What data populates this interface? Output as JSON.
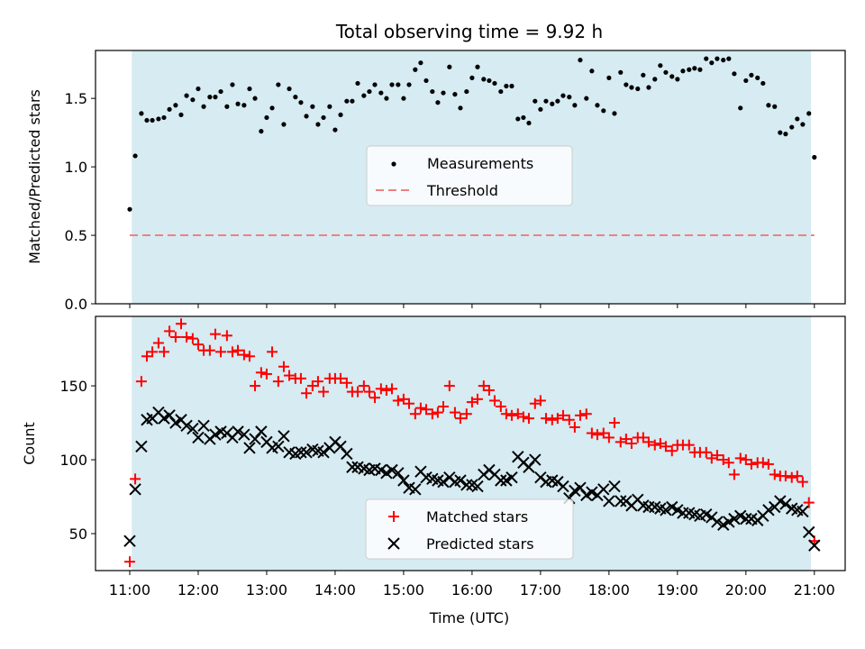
{
  "figure": {
    "title": "Total observing time = 9.92 h",
    "xlabel": "Time (UTC)"
  },
  "chart_data": [
    {
      "type": "scatter",
      "ylabel": "Matched/Predicted stars",
      "xlim": [
        10.5,
        21.45
      ],
      "ylim": [
        0,
        1.85
      ],
      "yticks": [
        0.0,
        0.5,
        1.0,
        1.5
      ],
      "ytick_labels": [
        "0.0",
        "0.5",
        "1.0",
        "1.5"
      ],
      "shaded_range": [
        11.03,
        20.95
      ],
      "shade_color": "#add8e6",
      "legend": {
        "position": "center",
        "entries": [
          "Measurements",
          "Threshold"
        ]
      },
      "threshold": {
        "name": "Threshold",
        "y": 0.5,
        "color": "#f08080",
        "style": "dashed"
      },
      "series": [
        {
          "name": "Measurements",
          "marker": "dot",
          "color": "#000000",
          "x": [
            11.0,
            11.08,
            11.17,
            11.25,
            11.33,
            11.42,
            11.5,
            11.58,
            11.67,
            11.75,
            11.83,
            11.92,
            12.0,
            12.08,
            12.17,
            12.25,
            12.33,
            12.42,
            12.5,
            12.58,
            12.67,
            12.75,
            12.83,
            12.92,
            13.0,
            13.08,
            13.17,
            13.25,
            13.33,
            13.42,
            13.5,
            13.58,
            13.67,
            13.75,
            13.83,
            13.92,
            14.0,
            14.08,
            14.17,
            14.25,
            14.33,
            14.42,
            14.5,
            14.58,
            14.67,
            14.75,
            14.83,
            14.92,
            15.0,
            15.08,
            15.17,
            15.25,
            15.33,
            15.42,
            15.5,
            15.58,
            15.67,
            15.75,
            15.83,
            15.92,
            16.0,
            16.08,
            16.17,
            16.25,
            16.33,
            16.42,
            16.5,
            16.58,
            16.67,
            16.75,
            16.83,
            16.92,
            17.0,
            17.08,
            17.17,
            17.25,
            17.33,
            17.42,
            17.5,
            17.58,
            17.67,
            17.75,
            17.83,
            17.92,
            18.0,
            18.08,
            18.17,
            18.25,
            18.33,
            18.42,
            18.5,
            18.58,
            18.67,
            18.75,
            18.83,
            18.92,
            19.0,
            19.08,
            19.17,
            19.25,
            19.33,
            19.42,
            19.5,
            19.58,
            19.67,
            19.75,
            19.83,
            19.92,
            20.0,
            20.08,
            20.17,
            20.25,
            20.33,
            20.42,
            20.5,
            20.58,
            20.67,
            20.75,
            20.83,
            20.92,
            21.0
          ],
          "y": [
            0.69,
            1.08,
            1.39,
            1.34,
            1.34,
            1.35,
            1.36,
            1.42,
            1.45,
            1.38,
            1.52,
            1.49,
            1.57,
            1.44,
            1.51,
            1.51,
            1.55,
            1.44,
            1.6,
            1.46,
            1.45,
            1.57,
            1.5,
            1.26,
            1.36,
            1.43,
            1.6,
            1.31,
            1.57,
            1.51,
            1.47,
            1.37,
            1.44,
            1.31,
            1.36,
            1.44,
            1.27,
            1.38,
            1.48,
            1.48,
            1.61,
            1.52,
            1.55,
            1.6,
            1.54,
            1.5,
            1.6,
            1.6,
            1.5,
            1.6,
            1.71,
            1.76,
            1.63,
            1.55,
            1.47,
            1.54,
            1.73,
            1.53,
            1.43,
            1.55,
            1.65,
            1.73,
            1.64,
            1.63,
            1.61,
            1.55,
            1.59,
            1.59,
            1.35,
            1.36,
            1.32,
            1.48,
            1.42,
            1.48,
            1.46,
            1.48,
            1.52,
            1.51,
            1.45,
            1.78,
            1.5,
            1.7,
            1.45,
            1.41,
            1.65,
            1.39,
            1.69,
            1.6,
            1.58,
            1.57,
            1.67,
            1.58,
            1.64,
            1.74,
            1.69,
            1.66,
            1.64,
            1.7,
            1.71,
            1.72,
            1.71,
            1.79,
            1.76,
            1.79,
            1.78,
            1.79,
            1.68,
            1.43,
            1.63,
            1.67,
            1.65,
            1.61,
            1.45,
            1.44,
            1.25,
            1.24,
            1.29,
            1.35,
            1.31,
            1.39,
            1.07
          ]
        }
      ]
    },
    {
      "type": "scatter",
      "ylabel": "Count",
      "xlim": [
        10.5,
        21.45
      ],
      "ylim": [
        25,
        197
      ],
      "yticks": [
        50,
        100,
        150
      ],
      "ytick_labels": [
        "50",
        "100",
        "150"
      ],
      "xticks": [
        11,
        12,
        13,
        14,
        15,
        16,
        17,
        18,
        19,
        20,
        21
      ],
      "xtick_labels": [
        "11:00",
        "12:00",
        "13:00",
        "14:00",
        "15:00",
        "16:00",
        "17:00",
        "18:00",
        "19:00",
        "20:00",
        "21:00"
      ],
      "shaded_range": [
        11.03,
        20.95
      ],
      "shade_color": "#add8e6",
      "legend": {
        "position": "bottom-center",
        "entries": [
          "Matched stars",
          "Predicted stars"
        ]
      },
      "series": [
        {
          "name": "Matched stars",
          "marker": "plus",
          "color": "#ff0000",
          "x": [
            11.0,
            11.08,
            11.17,
            11.25,
            11.33,
            11.42,
            11.5,
            11.58,
            11.67,
            11.75,
            11.83,
            11.92,
            12.0,
            12.08,
            12.17,
            12.25,
            12.33,
            12.42,
            12.5,
            12.58,
            12.67,
            12.75,
            12.83,
            12.92,
            13.0,
            13.08,
            13.17,
            13.25,
            13.33,
            13.42,
            13.5,
            13.58,
            13.67,
            13.75,
            13.83,
            13.92,
            14.0,
            14.08,
            14.17,
            14.25,
            14.33,
            14.42,
            14.5,
            14.58,
            14.67,
            14.75,
            14.83,
            14.92,
            15.0,
            15.08,
            15.17,
            15.25,
            15.33,
            15.42,
            15.5,
            15.58,
            15.67,
            15.75,
            15.83,
            15.92,
            16.0,
            16.08,
            16.17,
            16.25,
            16.33,
            16.42,
            16.5,
            16.58,
            16.67,
            16.75,
            16.83,
            16.92,
            17.0,
            17.08,
            17.17,
            17.25,
            17.33,
            17.42,
            17.5,
            17.58,
            17.67,
            17.75,
            17.83,
            17.92,
            18.0,
            18.08,
            18.17,
            18.25,
            18.33,
            18.42,
            18.5,
            18.58,
            18.67,
            18.75,
            18.83,
            18.92,
            19.0,
            19.08,
            19.17,
            19.25,
            19.33,
            19.42,
            19.5,
            19.58,
            19.67,
            19.75,
            19.83,
            19.92,
            20.0,
            20.08,
            20.17,
            20.25,
            20.33,
            20.42,
            20.5,
            20.58,
            20.67,
            20.75,
            20.83,
            20.92,
            21.0
          ],
          "y": [
            31,
            87,
            153,
            170,
            173,
            179,
            173,
            187,
            183,
            192,
            183,
            182,
            178,
            174,
            174,
            185,
            173,
            184,
            173,
            174,
            171,
            170,
            150,
            159,
            158,
            173,
            153,
            163,
            157,
            155,
            155,
            145,
            150,
            153,
            146,
            155,
            155,
            155,
            152,
            146,
            146,
            150,
            146,
            142,
            148,
            147,
            148,
            140,
            141,
            138,
            131,
            135,
            134,
            131,
            132,
            136,
            150,
            132,
            128,
            131,
            139,
            141,
            150,
            147,
            140,
            136,
            131,
            130,
            131,
            129,
            128,
            138,
            140,
            128,
            127,
            128,
            130,
            127,
            122,
            130,
            131,
            118,
            117,
            118,
            115,
            125,
            112,
            114,
            111,
            115,
            115,
            112,
            110,
            111,
            109,
            106,
            110,
            110,
            110,
            105,
            105,
            105,
            101,
            103,
            100,
            98,
            90,
            101,
            100,
            97,
            98,
            98,
            97,
            90,
            89,
            89,
            88,
            89,
            85,
            71,
            45
          ]
        },
        {
          "name": "Predicted stars",
          "marker": "x",
          "color": "#000000",
          "x": [
            11.0,
            11.08,
            11.17,
            11.25,
            11.33,
            11.42,
            11.5,
            11.58,
            11.67,
            11.75,
            11.83,
            11.92,
            12.0,
            12.08,
            12.17,
            12.25,
            12.33,
            12.42,
            12.5,
            12.58,
            12.67,
            12.75,
            12.83,
            12.92,
            13.0,
            13.08,
            13.17,
            13.25,
            13.33,
            13.42,
            13.5,
            13.58,
            13.67,
            13.75,
            13.83,
            13.92,
            14.0,
            14.08,
            14.17,
            14.25,
            14.33,
            14.42,
            14.5,
            14.58,
            14.67,
            14.75,
            14.83,
            14.92,
            15.0,
            15.08,
            15.17,
            15.25,
            15.33,
            15.42,
            15.5,
            15.58,
            15.67,
            15.75,
            15.83,
            15.92,
            16.0,
            16.08,
            16.17,
            16.25,
            16.33,
            16.42,
            16.5,
            16.58,
            16.67,
            16.75,
            16.83,
            16.92,
            17.0,
            17.08,
            17.17,
            17.25,
            17.33,
            17.42,
            17.5,
            17.58,
            17.67,
            17.75,
            17.83,
            17.92,
            18.0,
            18.08,
            18.17,
            18.25,
            18.33,
            18.42,
            18.5,
            18.58,
            18.67,
            18.75,
            18.83,
            18.92,
            19.0,
            19.08,
            19.17,
            19.25,
            19.33,
            19.42,
            19.5,
            19.58,
            19.67,
            19.75,
            19.83,
            19.92,
            20.0,
            20.08,
            20.17,
            20.25,
            20.33,
            20.42,
            20.5,
            20.58,
            20.67,
            20.75,
            20.83,
            20.92,
            21.0
          ],
          "y": [
            45,
            80,
            109,
            127,
            128,
            132,
            128,
            130,
            125,
            127,
            123,
            121,
            115,
            123,
            114,
            117,
            119,
            118,
            115,
            119,
            117,
            108,
            114,
            119,
            112,
            108,
            109,
            116,
            105,
            104,
            105,
            105,
            107,
            106,
            105,
            108,
            112,
            109,
            104,
            95,
            95,
            94,
            93,
            94,
            93,
            91,
            93,
            91,
            86,
            81,
            80,
            92,
            88,
            87,
            86,
            85,
            88,
            85,
            86,
            83,
            83,
            82,
            90,
            93,
            90,
            86,
            86,
            88,
            102,
            98,
            95,
            100,
            88,
            85,
            86,
            85,
            82,
            74,
            79,
            81,
            76,
            78,
            76,
            80,
            72,
            82,
            72,
            72,
            69,
            73,
            69,
            68,
            68,
            67,
            66,
            68,
            66,
            64,
            64,
            63,
            62,
            63,
            61,
            58,
            56,
            58,
            60,
            62,
            60,
            60,
            59,
            62,
            66,
            68,
            72,
            70,
            67,
            66,
            65,
            51,
            42
          ]
        }
      ]
    }
  ]
}
